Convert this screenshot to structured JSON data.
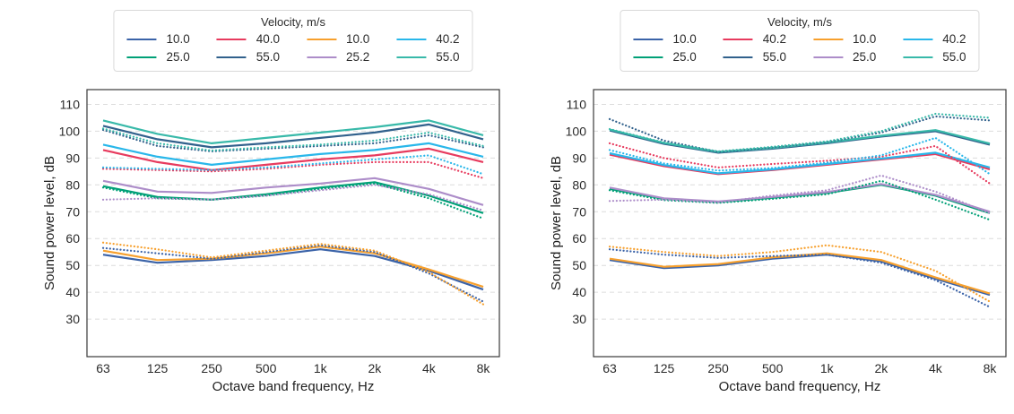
{
  "palette": {
    "blue": "#3b63a8",
    "green": "#00a077",
    "red": "#e73b5e",
    "navy": "#31618c",
    "orange": "#f7a02d",
    "purple": "#ad8dc9",
    "cyan": "#29b7ea",
    "teal": "#38b9a9"
  },
  "chart_data": [
    {
      "type": "line",
      "title": "",
      "xlabel": "Octave band frequency, Hz",
      "ylabel": "Sound power level, dB",
      "x_tick_labels": [
        "63",
        "125",
        "250",
        "500",
        "1k",
        "2k",
        "4k",
        "8k"
      ],
      "y_tick_labels": [
        "110",
        "100",
        "90",
        "80",
        "70",
        "60",
        "50",
        "40",
        "30"
      ],
      "ylim": [
        16,
        115.5
      ],
      "grid": "horizontal dashed",
      "legend": {
        "title": "Velocity, m/s",
        "columns": 4,
        "position": "top center",
        "entries": [
          {
            "label": "10.0",
            "color": "#3b63a8"
          },
          {
            "label": "40.0",
            "color": "#e73b5e"
          },
          {
            "label": "10.0",
            "color": "#f7a02d"
          },
          {
            "label": "40.2",
            "color": "#29b7ea"
          },
          {
            "label": "25.0",
            "color": "#00a077"
          },
          {
            "label": "55.0",
            "color": "#31618c"
          },
          {
            "label": "25.2",
            "color": "#ad8dc9"
          },
          {
            "label": "55.0",
            "color": "#38b9a9"
          }
        ]
      },
      "series": [
        {
          "velocity": "10.0",
          "color_name": "blue",
          "color": "#3b63a8",
          "style": "solid",
          "values": [
            54,
            51,
            52,
            53.5,
            56,
            53.5,
            48,
            41
          ]
        },
        {
          "velocity": "25.0",
          "color_name": "green",
          "color": "#00a077",
          "style": "solid",
          "values": [
            79.5,
            75.5,
            74.5,
            76.5,
            79,
            81,
            76,
            69.5
          ]
        },
        {
          "velocity": "40.0",
          "color_name": "red",
          "color": "#e73b5e",
          "style": "solid",
          "values": [
            93,
            88.5,
            85.5,
            87.5,
            89.5,
            91,
            93.5,
            88.5
          ]
        },
        {
          "velocity": "55.0",
          "color_name": "navy",
          "color": "#31618c",
          "style": "solid",
          "values": [
            102,
            97,
            94,
            95.5,
            97.5,
            99.5,
            102.5,
            97
          ]
        },
        {
          "velocity": "10.0",
          "color_name": "orange",
          "color": "#f7a02d",
          "style": "solid",
          "values": [
            55.5,
            52,
            52.5,
            54.5,
            57,
            54.5,
            48.5,
            42
          ]
        },
        {
          "velocity": "25.2",
          "color_name": "purple",
          "color": "#ad8dc9",
          "style": "solid",
          "values": [
            81.5,
            77.5,
            77,
            79,
            80.5,
            82.5,
            78.5,
            72.5
          ]
        },
        {
          "velocity": "40.2",
          "color_name": "cyan",
          "color": "#29b7ea",
          "style": "solid",
          "values": [
            95,
            90.5,
            87.5,
            89.5,
            91.5,
            93,
            95.5,
            90.5
          ]
        },
        {
          "velocity": "55.0",
          "color_name": "teal",
          "color": "#38b9a9",
          "style": "solid",
          "values": [
            104,
            99,
            95.5,
            97.5,
            99.5,
            101.5,
            104,
            98.5
          ]
        },
        {
          "velocity": "10.0",
          "color_name": "blue",
          "color": "#3b63a8",
          "style": "dotted",
          "values": [
            56.5,
            54.5,
            52.5,
            55,
            57.5,
            55,
            47,
            36.5
          ]
        },
        {
          "velocity": "25.0",
          "color_name": "green",
          "color": "#00a077",
          "style": "dotted",
          "values": [
            79,
            75,
            74.5,
            76,
            78.5,
            80.5,
            75,
            67.5
          ]
        },
        {
          "velocity": "40.0",
          "color_name": "red",
          "color": "#e73b5e",
          "style": "dotted",
          "values": [
            86,
            85.5,
            85,
            86,
            87.5,
            88.5,
            88.5,
            82.5
          ]
        },
        {
          "velocity": "55.0",
          "color_name": "navy",
          "color": "#31618c",
          "style": "dotted",
          "values": [
            100.5,
            94.5,
            92.5,
            93.5,
            94.5,
            95.5,
            98.5,
            94
          ]
        },
        {
          "velocity": "10.0",
          "color_name": "orange",
          "color": "#f7a02d",
          "style": "dotted",
          "values": [
            58.5,
            56,
            53,
            55.5,
            58,
            55.5,
            47.5,
            35.5
          ]
        },
        {
          "velocity": "25.2",
          "color_name": "purple",
          "color": "#ad8dc9",
          "style": "dotted",
          "values": [
            74.5,
            75,
            74.5,
            76,
            78,
            80,
            76.5,
            70.5
          ]
        },
        {
          "velocity": "40.2",
          "color_name": "cyan",
          "color": "#29b7ea",
          "style": "dotted",
          "values": [
            86.5,
            86,
            85.5,
            86.5,
            88,
            89.5,
            91,
            84
          ]
        },
        {
          "velocity": "55.0",
          "color_name": "teal",
          "color": "#38b9a9",
          "style": "dotted",
          "values": [
            101,
            95.5,
            92.8,
            94,
            95,
            96.5,
            99.5,
            94.5
          ]
        }
      ]
    },
    {
      "type": "line",
      "title": "",
      "xlabel": "Octave band frequency, Hz",
      "ylabel": "Sound power level, dB",
      "x_tick_labels": [
        "63",
        "125",
        "250",
        "500",
        "1k",
        "2k",
        "4k",
        "8k"
      ],
      "y_tick_labels": [
        "110",
        "100",
        "90",
        "80",
        "70",
        "60",
        "50",
        "40",
        "30"
      ],
      "ylim": [
        16,
        115.5
      ],
      "grid": "horizontal dashed",
      "legend": {
        "title": "Velocity, m/s",
        "columns": 4,
        "position": "top center",
        "entries": [
          {
            "label": "10.0",
            "color": "#3b63a8"
          },
          {
            "label": "40.2",
            "color": "#e73b5e"
          },
          {
            "label": "10.0",
            "color": "#f7a02d"
          },
          {
            "label": "40.2",
            "color": "#29b7ea"
          },
          {
            "label": "25.0",
            "color": "#00a077"
          },
          {
            "label": "55.0",
            "color": "#31618c"
          },
          {
            "label": "25.0",
            "color": "#ad8dc9"
          },
          {
            "label": "55.0",
            "color": "#38b9a9"
          }
        ]
      },
      "series": [
        {
          "velocity": "10.0",
          "color_name": "blue",
          "color": "#3b63a8",
          "style": "solid",
          "values": [
            52,
            49,
            50,
            52.5,
            54,
            51.5,
            45,
            39
          ]
        },
        {
          "velocity": "25.0",
          "color_name": "green",
          "color": "#00a077",
          "style": "solid",
          "values": [
            78.5,
            74.8,
            73.6,
            75.2,
            77,
            80,
            76,
            69.5
          ]
        },
        {
          "velocity": "40.2",
          "color_name": "red",
          "color": "#e73b5e",
          "style": "solid",
          "values": [
            91.3,
            87,
            84,
            85.5,
            87.5,
            89.5,
            91.5,
            85.8
          ]
        },
        {
          "velocity": "55.0",
          "color_name": "navy",
          "color": "#31618c",
          "style": "solid",
          "values": [
            100.3,
            95.3,
            92,
            93.5,
            95.5,
            98,
            100,
            95
          ]
        },
        {
          "velocity": "10.0",
          "color_name": "orange",
          "color": "#f7a02d",
          "style": "solid",
          "values": [
            52.5,
            49.5,
            50.5,
            53,
            54.5,
            52,
            45.5,
            39.5
          ]
        },
        {
          "velocity": "25.0",
          "color_name": "purple",
          "color": "#ad8dc9",
          "style": "solid",
          "values": [
            79,
            75,
            73.8,
            75.5,
            77.3,
            80.3,
            76.3,
            70
          ]
        },
        {
          "velocity": "40.2",
          "color_name": "cyan",
          "color": "#29b7ea",
          "style": "solid",
          "values": [
            91.8,
            87.4,
            84.3,
            85.8,
            87.8,
            89.8,
            92,
            86.5
          ]
        },
        {
          "velocity": "55.0",
          "color_name": "teal",
          "color": "#38b9a9",
          "style": "solid",
          "values": [
            100.6,
            95.6,
            92.3,
            93.8,
            95.8,
            98.3,
            100.4,
            95.4
          ]
        },
        {
          "velocity": "10.0",
          "color_name": "blue",
          "color": "#3b63a8",
          "style": "dotted",
          "values": [
            56,
            54,
            52.8,
            53.5,
            54,
            51,
            44.5,
            34.5
          ]
        },
        {
          "velocity": "25.0",
          "color_name": "green",
          "color": "#00a077",
          "style": "dotted",
          "values": [
            78,
            74.3,
            73.3,
            74.8,
            76.5,
            81.5,
            74.5,
            67
          ]
        },
        {
          "velocity": "40.2",
          "color_name": "red",
          "color": "#e73b5e",
          "style": "dotted",
          "values": [
            95.5,
            90,
            86.5,
            87.8,
            89,
            90.5,
            94.5,
            80.5
          ]
        },
        {
          "velocity": "55.0",
          "color_name": "navy",
          "color": "#31618c",
          "style": "dotted",
          "values": [
            104.5,
            96.5,
            92.3,
            94,
            96,
            99.5,
            105.5,
            104
          ]
        },
        {
          "velocity": "10.0",
          "color_name": "orange",
          "color": "#f7a02d",
          "style": "dotted",
          "values": [
            57,
            55,
            53.5,
            55,
            57.5,
            55,
            48,
            36.5
          ]
        },
        {
          "velocity": "25.0",
          "color_name": "purple",
          "color": "#ad8dc9",
          "style": "dotted",
          "values": [
            74,
            74.5,
            73.5,
            76,
            78,
            83.5,
            77.5,
            69.5
          ]
        },
        {
          "velocity": "40.2",
          "color_name": "cyan",
          "color": "#29b7ea",
          "style": "dotted",
          "values": [
            93,
            88,
            85.3,
            86.3,
            88.3,
            91,
            97.5,
            84
          ]
        },
        {
          "velocity": "55.0",
          "color_name": "teal",
          "color": "#38b9a9",
          "style": "dotted",
          "values": [
            100.8,
            95.8,
            92.5,
            94.2,
            96.2,
            100,
            106.5,
            105
          ]
        }
      ]
    }
  ]
}
